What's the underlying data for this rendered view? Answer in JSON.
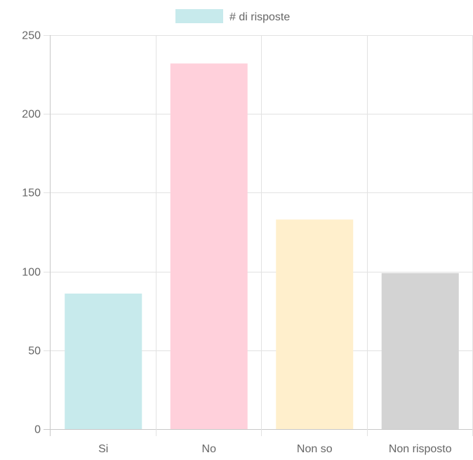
{
  "chart_data": {
    "type": "bar",
    "categories": [
      "Si",
      "No",
      "Non so",
      "Non risposto"
    ],
    "series": [
      {
        "name": "# di risposte",
        "values": [
          86,
          232,
          133,
          99
        ],
        "colors": [
          "#c7eaec",
          "#ffd0db",
          "#ffefcc",
          "#d3d3d3"
        ]
      }
    ],
    "ylim": [
      0,
      250
    ],
    "yticks": [
      "0",
      "50",
      "100",
      "150",
      "200",
      "250"
    ],
    "grid": true,
    "legend": "top-center",
    "legend_swatch_color": "#c7eaec",
    "grid_color": "#e2e2e2",
    "axis_color": "#c8c8c8"
  }
}
